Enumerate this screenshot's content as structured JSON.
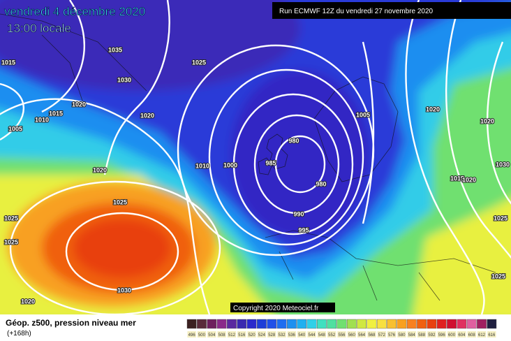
{
  "header": {
    "date": "vendredi 4 décembre 2020",
    "time": "13:00 locale",
    "run": "Run ECMWF 12Z du vendredi 27 novembre 2020"
  },
  "copyright": "Copyright 2020 Meteociel.fr",
  "legend": {
    "title": "Géop. z500, pression niveau mer",
    "lead": "(+168h)",
    "scale": {
      "labels": [
        496,
        500,
        504,
        508,
        512,
        516,
        520,
        524,
        528,
        532,
        536,
        540,
        544,
        548,
        552,
        556,
        560,
        564,
        568,
        572,
        576,
        580,
        584,
        588,
        592,
        596,
        600,
        604,
        608,
        612,
        616
      ],
      "colors": [
        "#3b2020",
        "#5a2a3a",
        "#6e1f5e",
        "#8a2a8a",
        "#5a2aa0",
        "#3a2ab0",
        "#2a2acc",
        "#1e3ed8",
        "#2050e8",
        "#1e6ef0",
        "#1e90f0",
        "#20b0f0",
        "#30d0e8",
        "#40e0c0",
        "#50e0a0",
        "#70e070",
        "#a0e050",
        "#d0e840",
        "#f0f040",
        "#f8e040",
        "#f8c030",
        "#f8a020",
        "#f88020",
        "#f06010",
        "#e84010",
        "#e02020",
        "#d01030",
        "#e03060",
        "#e060a0",
        "#a02060",
        "#202040"
      ]
    }
  },
  "isobar_labels": [
    1035,
    1030,
    1025,
    1020,
    1020,
    1015,
    1010,
    1005,
    1015,
    1020,
    1025,
    1025,
    1025,
    1030,
    1020,
    1010,
    1000,
    985,
    980,
    980,
    990,
    995,
    1005,
    1020,
    1020,
    1030,
    1015,
    1020,
    1025,
    1025
  ]
}
